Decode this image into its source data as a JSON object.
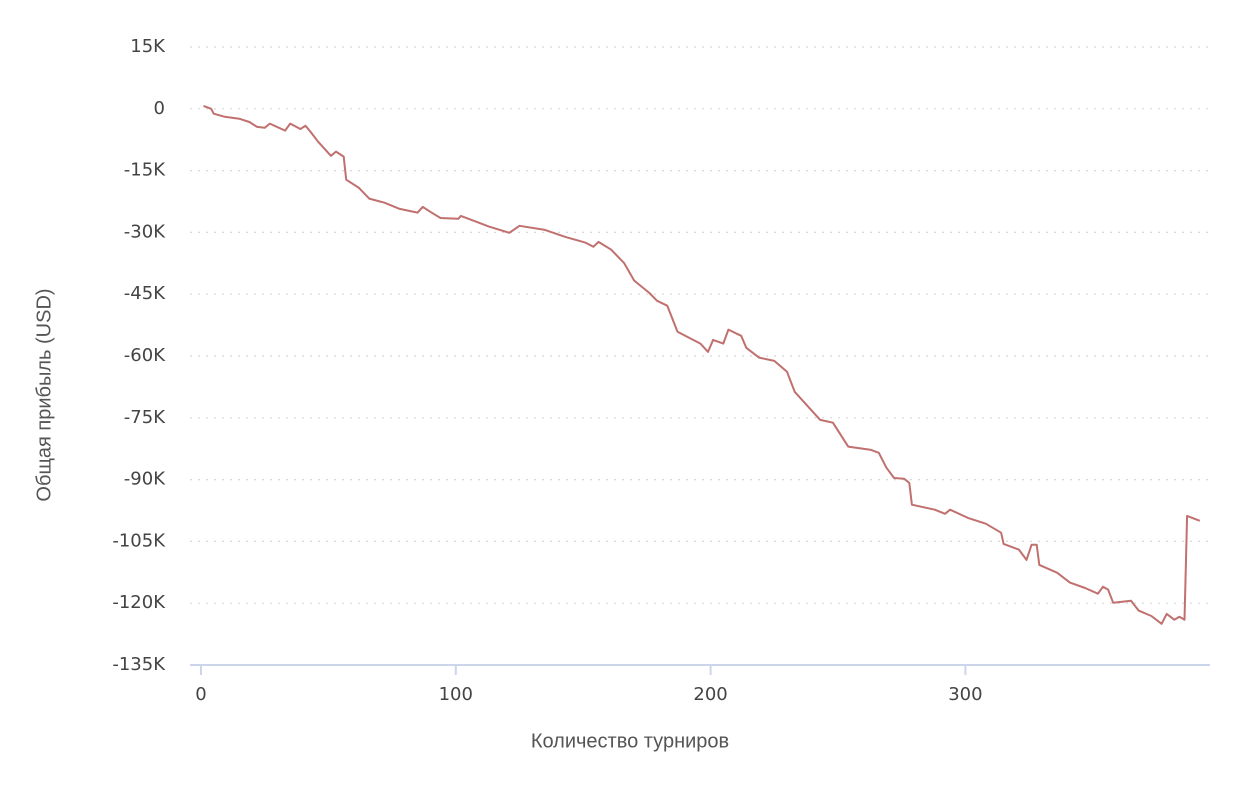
{
  "chart_data": {
    "type": "line",
    "x_label": "Количество турниров",
    "y_label": "Общая прибыль (USD)",
    "color": "#c0706e",
    "grid": true,
    "xlim": [
      0,
      396
    ],
    "ylim": [
      -135000,
      15000
    ],
    "xticks": [
      0,
      100,
      200,
      300
    ],
    "yticks": [
      {
        "value": 15000,
        "label": "15K"
      },
      0,
      {
        "value": -15000,
        "label": "-15K"
      },
      {
        "value": -30000,
        "label": "-30K"
      },
      {
        "value": -45000,
        "label": "-45K"
      },
      {
        "value": -60000,
        "label": "-60K"
      },
      {
        "value": -75000,
        "label": "-75K"
      },
      {
        "value": -90000,
        "label": "-90K"
      },
      {
        "value": -105000,
        "label": "-105K"
      },
      {
        "value": -120000,
        "label": "-120K"
      },
      {
        "value": -135000,
        "label": "-135K"
      }
    ],
    "x": [
      1,
      4,
      5,
      9,
      15,
      19,
      22,
      25,
      27,
      33,
      35,
      39,
      41,
      43,
      46,
      51,
      53,
      56,
      57,
      62,
      66,
      72,
      78,
      85,
      87,
      90,
      94,
      101,
      102,
      108,
      113,
      121,
      125,
      135,
      143,
      151,
      154,
      156,
      161,
      166,
      170,
      176,
      179,
      183,
      187,
      196,
      199,
      201,
      205,
      207,
      212,
      214,
      219,
      225,
      230,
      233,
      239,
      243,
      248,
      254,
      263,
      266,
      269,
      272,
      276,
      278,
      279,
      288,
      292,
      294,
      301,
      308,
      314,
      315,
      321,
      324,
      326,
      328,
      329,
      336,
      341,
      347,
      352,
      354,
      356,
      358,
      365,
      368,
      373,
      377,
      379,
      382,
      384,
      386,
      387,
      392
    ],
    "values": [
      700,
      0,
      -1200,
      -1900,
      -2400,
      -3200,
      -4400,
      -4600,
      -3600,
      -5300,
      -3600,
      -4900,
      -4100,
      -5600,
      -8000,
      -11400,
      -10400,
      -11600,
      -17200,
      -19200,
      -21800,
      -22800,
      -24300,
      -25200,
      -23800,
      -25000,
      -26500,
      -26700,
      -26000,
      -27400,
      -28600,
      -30100,
      -28400,
      -29400,
      -31100,
      -32500,
      -33500,
      -32300,
      -34200,
      -37400,
      -41700,
      -44700,
      -46600,
      -47800,
      -54100,
      -57000,
      -59000,
      -56100,
      -57000,
      -53600,
      -55100,
      -58000,
      -60400,
      -61200,
      -63800,
      -68700,
      -72800,
      -75500,
      -76200,
      -82000,
      -82800,
      -83500,
      -87100,
      -89600,
      -89800,
      -90800,
      -96100,
      -97300,
      -98300,
      -97300,
      -99300,
      -100700,
      -102900,
      -105600,
      -107000,
      -109500,
      -105800,
      -105800,
      -110700,
      -112600,
      -115000,
      -116300,
      -117700,
      -116000,
      -116700,
      -119900,
      -119400,
      -121800,
      -123100,
      -125000,
      -122600,
      -124000,
      -123300,
      -124000,
      -98800,
      -100000
    ]
  }
}
